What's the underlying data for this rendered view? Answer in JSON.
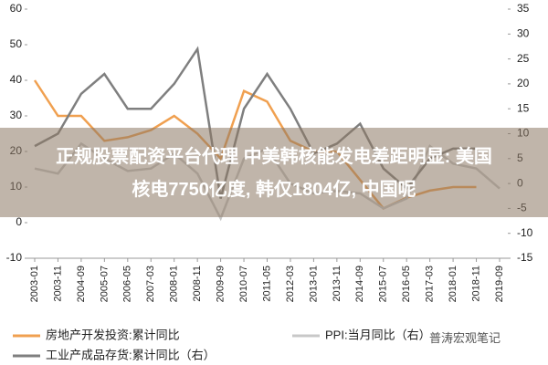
{
  "chart_data": {
    "type": "line",
    "x": [
      "2003-01",
      "2003-11",
      "2004-09",
      "2005-07",
      "2006-05",
      "2007-03",
      "2008-01",
      "2008-11",
      "2009-09",
      "2010-07",
      "2011-05",
      "2012-03",
      "2013-01",
      "2013-11",
      "2014-09",
      "2015-07",
      "2016-05",
      "2017-03",
      "2018-01",
      "2018-11",
      "2019-09"
    ],
    "ylim": [
      -10,
      60
    ],
    "yticks": [
      -10,
      0,
      10,
      20,
      30,
      40,
      50,
      60
    ],
    "y2lim": [
      -15,
      35
    ],
    "y2ticks": [
      -15,
      -10,
      -5,
      0,
      5,
      10,
      15,
      20,
      25,
      30,
      35
    ],
    "series": [
      {
        "name": "房地产开发投资:累计同比",
        "color": "#f0a050",
        "values": [
          40,
          30,
          30,
          23,
          24,
          26,
          30,
          25,
          18,
          37,
          34,
          23,
          20,
          20,
          12,
          4,
          7,
          9,
          10,
          10,
          null
        ]
      },
      {
        "name": "PPI:当月同比（右）",
        "color": "#c8c8c8",
        "axis": "y2",
        "values": [
          3,
          2,
          8,
          5,
          2.5,
          3,
          6,
          2,
          -7,
          5,
          7,
          0,
          -2,
          -1.5,
          -2,
          -5,
          -3,
          7.5,
          4,
          3,
          -1
        ]
      },
      {
        "name": "工业产成品存货:累计同比（右）",
        "color": "#7f7f7f",
        "axis": "y2",
        "values": [
          7.5,
          10,
          18,
          22,
          15,
          15,
          20,
          27,
          -3,
          15,
          22,
          15,
          6,
          8,
          12,
          3,
          -1,
          5,
          7,
          7,
          null
        ]
      }
    ]
  },
  "overlay": {
    "line1": "正规股票配资平台代理 中美韩核能发电差距明显: 美国",
    "line2": "核电7750亿度, 韩仅1804亿, 中国呢"
  },
  "watermark": "普涛宏观笔记"
}
